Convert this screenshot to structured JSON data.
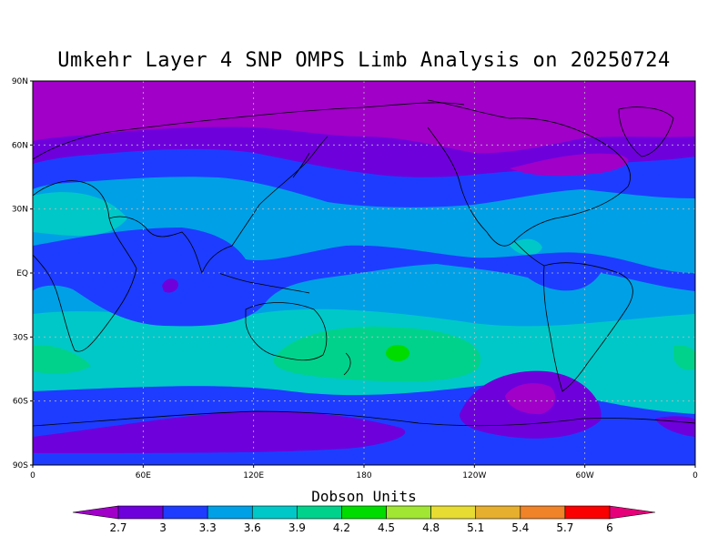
{
  "title": "Umkehr Layer 4 SNP OMPS Limb Analysis on 20250724",
  "colorbar": {
    "title": "Dobson Units",
    "ticks": [
      "2.7",
      "3",
      "3.3",
      "3.6",
      "3.9",
      "4.2",
      "4.5",
      "4.8",
      "5.1",
      "5.4",
      "5.7",
      "6"
    ],
    "colors": [
      "#a000c8",
      "#6e00dc",
      "#1e3cff",
      "#00a0e6",
      "#00c8c8",
      "#00d28c",
      "#00dc00",
      "#a0e632",
      "#e6dc32",
      "#e6af2d",
      "#f08228",
      "#fa0000",
      "#e6007a"
    ]
  },
  "axes": {
    "lat_labels": [
      "90N",
      "60N",
      "30N",
      "EQ",
      "30S",
      "60S",
      "90S"
    ],
    "lon_labels": [
      "0",
      "60E",
      "120E",
      "180",
      "120W",
      "60W",
      "0"
    ]
  },
  "chart_data": {
    "type": "heatmap",
    "title": "Umkehr Layer 4 SNP OMPS Limb Analysis on 20250724",
    "units": "Dobson Units",
    "levels": [
      2.7,
      3,
      3.3,
      3.6,
      3.9,
      4.2,
      4.5,
      4.8,
      5.1,
      5.4,
      5.7,
      6
    ],
    "lat_range": [
      -90,
      90
    ],
    "lon_range": [
      0,
      360
    ],
    "zonal_pattern": [
      {
        "lat_band": "90N-65N",
        "value": 2.8
      },
      {
        "lat_band": "65N-40N",
        "value": 3.1
      },
      {
        "lat_band": "40N-15N",
        "value": 3.5
      },
      {
        "lat_band": "15N-15S",
        "value": 3.2
      },
      {
        "lat_band": "15S-30S",
        "value": 3.5
      },
      {
        "lat_band": "30S-50S",
        "value": 3.9
      },
      {
        "lat_band": "50S-70S",
        "value": 3.4
      },
      {
        "lat_band": "70S-90S",
        "value": 3.1
      }
    ],
    "maxima": [
      {
        "lon": 165,
        "lat": -36,
        "value": 4.3
      },
      {
        "lon": 5,
        "lat": -40,
        "value": 4.0
      }
    ],
    "minima": [
      {
        "lon": 255,
        "lat": -55,
        "value": 2.7
      },
      {
        "lon": 70,
        "lat": -5,
        "value": 2.8
      }
    ],
    "grid": true
  }
}
